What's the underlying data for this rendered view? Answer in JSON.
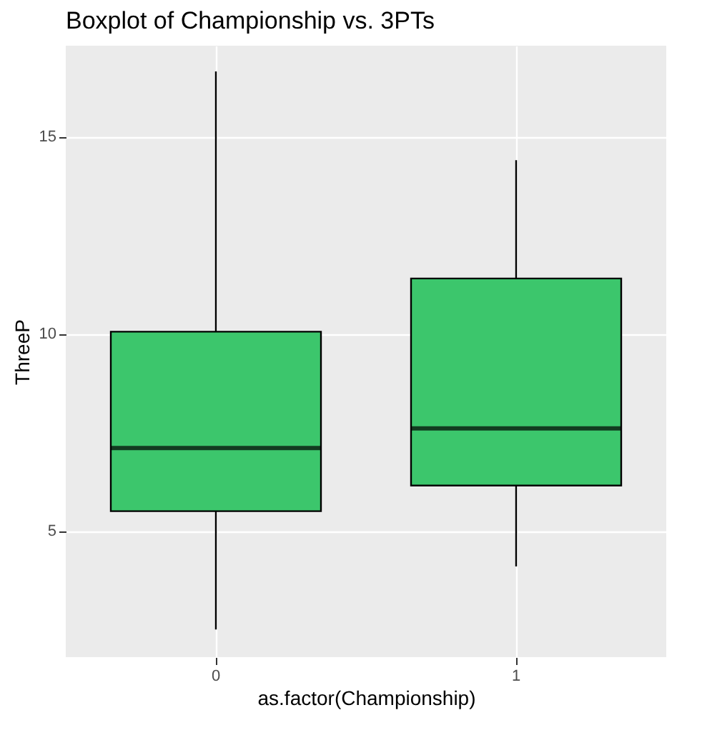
{
  "chart_data": {
    "type": "box",
    "title": "Boxplot of Championship vs. 3PTs",
    "xlabel": "as.factor(Championship)",
    "ylabel": "ThreeP",
    "categories": [
      "0",
      "1"
    ],
    "series": [
      {
        "color": "#3cc66c",
        "boxes": [
          {
            "low": 2.5,
            "q1": 5.5,
            "median": 7.1,
            "q3": 10.05,
            "high": 16.65
          },
          {
            "low": 4.1,
            "q1": 6.15,
            "median": 7.6,
            "q3": 11.4,
            "high": 14.4
          }
        ]
      }
    ],
    "ylim": [
      1.8,
      17.3
    ],
    "yticks": [
      5,
      10,
      15
    ],
    "grid": true
  }
}
